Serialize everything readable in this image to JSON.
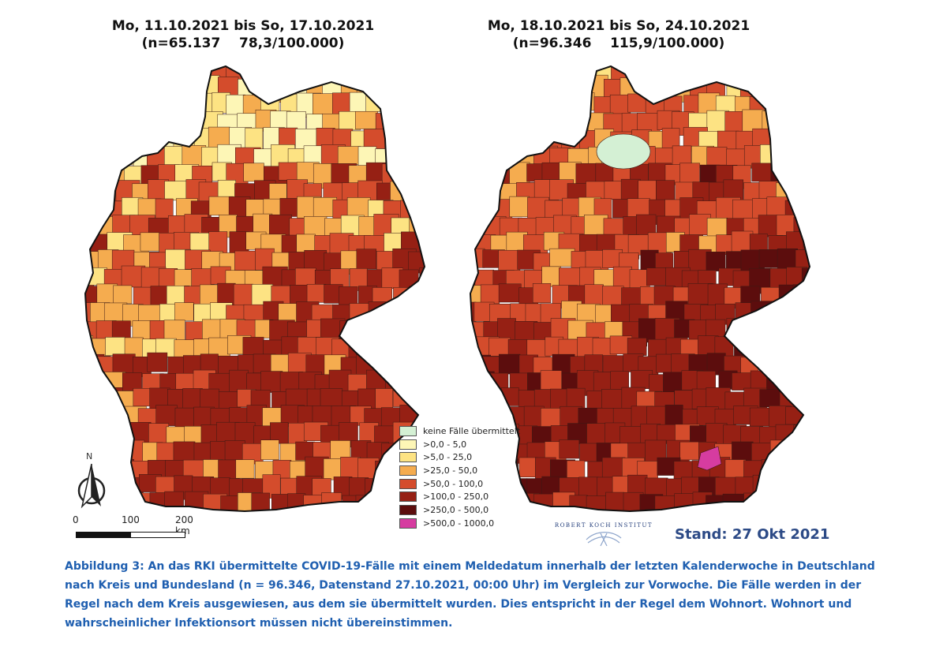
{
  "maps": [
    {
      "title_line1": "Mo, 11.10.2021 bis So, 17.10.2021",
      "title_line2": "(n=65.137    78,3/100.000)"
    },
    {
      "title_line1": "Mo, 18.10.2021 bis So, 24.10.2021",
      "title_line2": "(n=96.346    115,9/100.000)"
    }
  ],
  "legend": {
    "items": [
      {
        "label": "keine Fälle übermittelt",
        "color": "#d4f0d4"
      },
      {
        "label": ">0,0 - 5,0",
        "color": "#fdf6b6"
      },
      {
        "label": ">5,0 - 25,0",
        "color": "#fde383"
      },
      {
        "label": ">25,0 - 50,0",
        "color": "#f5ac4f"
      },
      {
        "label": ">50,0 - 100,0",
        "color": "#d44c2c"
      },
      {
        "label": ">100,0 - 250,0",
        "color": "#962014"
      },
      {
        "label": ">250,0 - 500,0",
        "color": "#5c0d0d"
      },
      {
        "label": ">500,0 - 1000,0",
        "color": "#d63ca0"
      }
    ]
  },
  "north_label": "N",
  "scale_bar": {
    "labels": [
      "0",
      "100",
      "200 km"
    ]
  },
  "logo_text": "ROBERT KOCH INSTITUT",
  "stand": "Stand: 27 Okt 2021",
  "caption": "Abbildung 3: An das RKI übermittelte COVID-19-Fälle mit einem Meldedatum innerhalb der letzten Kalenderwoche in Deutschland nach Kreis und Bundesland (n = 96.346, Datenstand 27.10.2021, 00:00 Uhr) im Vergleich zur Vorwoche. Die Fälle werden in der Regel nach dem Kreis ausgewiesen, aus dem sie übermittelt wurden. Dies entspricht in der Regel dem Wohnort. Wohnort und wahrscheinlicher Infektionsort müssen nicht übereinstimmen."
}
